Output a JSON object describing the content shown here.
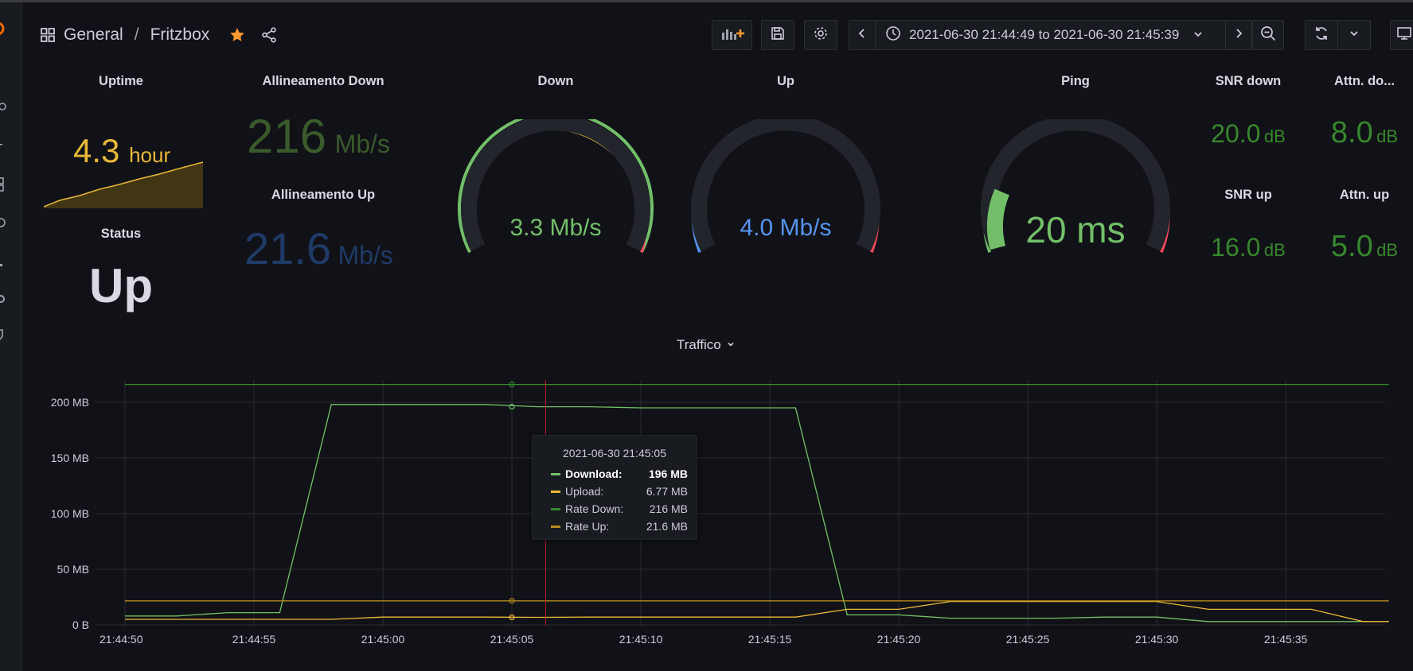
{
  "colors": {
    "background": "#111217",
    "green": "#73bf69",
    "dark_green": "#37872d",
    "yellow": "#fade2a",
    "orange": "#ff9830",
    "red": "#f2495c",
    "blue": "#5794f2",
    "dim_blue": "#1f3a67",
    "amber": "#eab839",
    "olive": "#3a5a2c"
  },
  "header": {
    "breadcrumb_folder": "General",
    "breadcrumb_separator": "/",
    "breadcrumb_dashboard": "Fritzbox",
    "time_range": "2021-06-30 21:44:49 to 2021-06-30 21:45:39"
  },
  "icons": [
    "grafana-logo-icon",
    "search-icon",
    "plus-icon",
    "dashboards-icon",
    "explore-icon",
    "alerting-icon",
    "gear-icon",
    "shield-icon",
    "apps-grid-icon",
    "star-icon",
    "share-icon",
    "add-panel-icon",
    "save-icon",
    "settings-icon",
    "chevron-left-icon",
    "clock-icon",
    "chevron-down-icon",
    "chevron-right-icon",
    "zoom-out-icon",
    "refresh-icon",
    "monitor-icon"
  ],
  "panels": {
    "uptime": {
      "title": "Uptime",
      "value": "4.3",
      "unit": "hour"
    },
    "status": {
      "title": "Status",
      "value": "Up"
    },
    "align_down": {
      "title": "Allineamento Down",
      "value": "216",
      "unit": "Mb/s"
    },
    "align_up": {
      "title": "Allineamento Up",
      "value": "21.6",
      "unit": "Mb/s"
    },
    "down": {
      "title": "Down",
      "value": "3.3 Mb/s",
      "level": 0.0
    },
    "up": {
      "title": "Up",
      "value": "4.0 Mb/s",
      "level": 0.0
    },
    "ping": {
      "title": "Ping",
      "value": "20 ms",
      "level": 0.2
    },
    "snr_down": {
      "title": "SNR down",
      "value": "20.0",
      "unit": "dB"
    },
    "attn_down": {
      "title": "Attn. do...",
      "value": "8.0",
      "unit": "dB"
    },
    "snr_up": {
      "title": "SNR up",
      "value": "16.0",
      "unit": "dB"
    },
    "attn_up": {
      "title": "Attn. up",
      "value": "5.0",
      "unit": "dB"
    }
  },
  "chart_data": {
    "type": "line",
    "title": "Traffico",
    "x": [
      "21:44:50",
      "21:44:52",
      "21:44:54",
      "21:44:56",
      "21:44:58",
      "21:45:00",
      "21:45:02",
      "21:45:04",
      "21:45:06",
      "21:45:08",
      "21:45:10",
      "21:45:12",
      "21:45:14",
      "21:45:16",
      "21:45:18",
      "21:45:20",
      "21:45:22",
      "21:45:24",
      "21:45:26",
      "21:45:28",
      "21:45:30",
      "21:45:32",
      "21:45:34",
      "21:45:36",
      "21:45:38",
      "21:45:39"
    ],
    "x_ticks": [
      "21:44:50",
      "21:44:55",
      "21:45:00",
      "21:45:05",
      "21:45:10",
      "21:45:15",
      "21:45:20",
      "21:45:25",
      "21:45:30",
      "21:45:35"
    ],
    "y_ticks": [
      "0 B",
      "50 MB",
      "100 MB",
      "150 MB",
      "200 MB"
    ],
    "ylim": [
      0,
      220
    ],
    "y_unit": "MB",
    "grid": true,
    "series": [
      {
        "name": "Download",
        "color": "#73bf69",
        "values": [
          8,
          8,
          11,
          11,
          198,
          198,
          198,
          198,
          196,
          196,
          195,
          195,
          195,
          195,
          9,
          9,
          6,
          6,
          6,
          7,
          7,
          3,
          3,
          3,
          3,
          3
        ]
      },
      {
        "name": "Upload",
        "color": "#eab839",
        "values": [
          5,
          5,
          5,
          5,
          5,
          7,
          7,
          7,
          6.77,
          7,
          7,
          7,
          7,
          7,
          14,
          14,
          21,
          21,
          21,
          21,
          21,
          14,
          14,
          14,
          3,
          3
        ]
      },
      {
        "name": "Rate Down",
        "color": "#37872d",
        "values": [
          216,
          216,
          216,
          216,
          216,
          216,
          216,
          216,
          216,
          216,
          216,
          216,
          216,
          216,
          216,
          216,
          216,
          216,
          216,
          216,
          216,
          216,
          216,
          216,
          216,
          216
        ]
      },
      {
        "name": "Rate Up",
        "color": "#b58b1c",
        "values": [
          21.6,
          21.6,
          21.6,
          21.6,
          21.6,
          21.6,
          21.6,
          21.6,
          21.6,
          21.6,
          21.6,
          21.6,
          21.6,
          21.6,
          21.6,
          21.6,
          21.6,
          21.6,
          21.6,
          21.6,
          21.6,
          21.6,
          21.6,
          21.6,
          21.6,
          21.6
        ]
      }
    ],
    "tooltip": {
      "time": "2021-06-30 21:45:05",
      "rows": [
        {
          "label": "Download:",
          "value": "196 MB"
        },
        {
          "label": "Upload:",
          "value": "6.77 MB"
        },
        {
          "label": "Rate Down:",
          "value": "216 MB"
        },
        {
          "label": "Rate Up:",
          "value": "21.6 MB"
        }
      ]
    }
  }
}
